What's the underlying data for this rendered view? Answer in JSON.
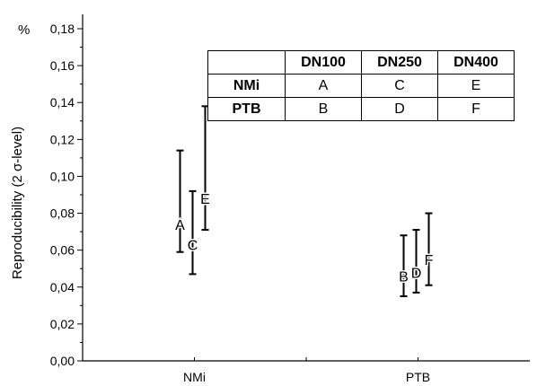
{
  "chart_data": {
    "type": "errorbar",
    "y_unit_label": "%",
    "ylabel": "Reproducibility (2 σ-level)",
    "ylim": [
      0,
      0.18
    ],
    "yticks": [
      "0,00",
      "0,02",
      "0,04",
      "0,06",
      "0,08",
      "0,10",
      "0,12",
      "0,14",
      "0,16",
      "0,18"
    ],
    "ytick_values": [
      0,
      0.02,
      0.04,
      0.06,
      0.08,
      0.1,
      0.12,
      0.14,
      0.16,
      0.18
    ],
    "categories": [
      "NMi",
      "PTB"
    ],
    "points": [
      {
        "label": "A",
        "group": "NMi",
        "value": 0.074,
        "low": 0.059,
        "high": 0.114
      },
      {
        "label": "C",
        "group": "NMi",
        "value": 0.063,
        "low": 0.047,
        "high": 0.092
      },
      {
        "label": "E",
        "group": "NMi",
        "value": 0.088,
        "low": 0.071,
        "high": 0.138
      },
      {
        "label": "B",
        "group": "PTB",
        "value": 0.046,
        "low": 0.035,
        "high": 0.068
      },
      {
        "label": "D",
        "group": "PTB",
        "value": 0.048,
        "low": 0.037,
        "high": 0.071
      },
      {
        "label": "F",
        "group": "PTB",
        "value": 0.055,
        "low": 0.041,
        "high": 0.08
      }
    ],
    "legend_table": {
      "columns": [
        "DN100",
        "DN250",
        "DN400"
      ],
      "rows": [
        {
          "label": "NMi",
          "cells": [
            "A",
            "C",
            "E"
          ]
        },
        {
          "label": "PTB",
          "cells": [
            "B",
            "D",
            "F"
          ]
        }
      ]
    }
  }
}
